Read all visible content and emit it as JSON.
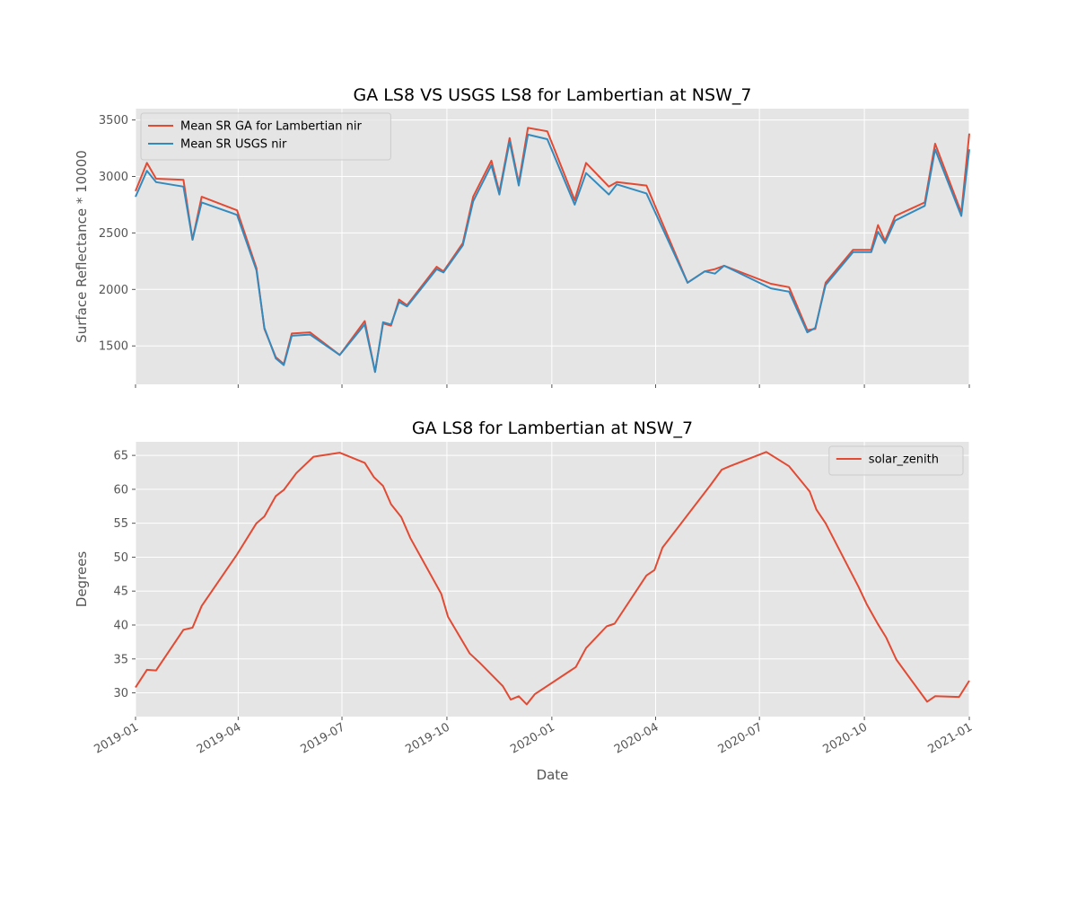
{
  "chart_data": [
    {
      "type": "line",
      "title": "GA LS8 VS USGS LS8 for Lambertian at NSW_7",
      "xlabel": "",
      "ylabel": "Surface Reflectance * 10000",
      "xlim": [
        "2019-01-01",
        "2021-01-01"
      ],
      "ylim": [
        1160,
        3600
      ],
      "yticks": [
        1500,
        2000,
        2500,
        3000,
        3500
      ],
      "xticks": [
        "2019-01",
        "2019-04",
        "2019-07",
        "2019-10",
        "2020-01",
        "2020-04",
        "2020-07",
        "2020-10",
        "2021-01"
      ],
      "show_xtick_labels": false,
      "grid": true,
      "legend": "upper-left",
      "series": [
        {
          "name": "Mean SR GA for Lambertian nir",
          "color": "#E24A33",
          "x": [
            "2019-01-01",
            "2019-01-11",
            "2019-01-19",
            "2019-02-12",
            "2019-02-20",
            "2019-02-28",
            "2019-03-31",
            "2019-04-17",
            "2019-04-24",
            "2019-05-04",
            "2019-05-11",
            "2019-05-18",
            "2019-06-03",
            "2019-06-29",
            "2019-07-21",
            "2019-07-30",
            "2019-08-06",
            "2019-08-13",
            "2019-08-20",
            "2019-08-27",
            "2019-09-22",
            "2019-09-28",
            "2019-10-15",
            "2019-10-24",
            "2019-11-09",
            "2019-11-16",
            "2019-11-25",
            "2019-12-03",
            "2019-12-11",
            "2019-12-28",
            "2020-01-21",
            "2020-01-31",
            "2020-02-20",
            "2020-02-27",
            "2020-03-24",
            "2020-04-29",
            "2020-05-14",
            "2020-05-23",
            "2020-05-31",
            "2020-07-11",
            "2020-07-27",
            "2020-08-12",
            "2020-08-19",
            "2020-08-28",
            "2020-09-21",
            "2020-10-07",
            "2020-10-13",
            "2020-10-19",
            "2020-10-28",
            "2020-11-23",
            "2020-12-02",
            "2020-12-25",
            "2021-01-01"
          ],
          "values": [
            2870,
            3120,
            2980,
            2970,
            2440,
            2820,
            2700,
            2190,
            1650,
            1400,
            1340,
            1610,
            1620,
            1420,
            1720,
            1270,
            1700,
            1680,
            1910,
            1860,
            2200,
            2160,
            2410,
            2820,
            3140,
            2860,
            3340,
            2940,
            3430,
            3400,
            2790,
            3120,
            2910,
            2950,
            2920,
            2060,
            2160,
            2180,
            2210,
            2050,
            2020,
            1640,
            1650,
            2060,
            2350,
            2350,
            2570,
            2430,
            2650,
            2770,
            3290,
            2680,
            3380
          ]
        },
        {
          "name": "Mean SR USGS nir",
          "color": "#348ABD",
          "x": [
            "2019-01-01",
            "2019-01-11",
            "2019-01-19",
            "2019-02-12",
            "2019-02-20",
            "2019-02-28",
            "2019-03-31",
            "2019-04-17",
            "2019-04-24",
            "2019-05-04",
            "2019-05-11",
            "2019-05-18",
            "2019-06-03",
            "2019-06-29",
            "2019-07-21",
            "2019-07-30",
            "2019-08-06",
            "2019-08-13",
            "2019-08-20",
            "2019-08-27",
            "2019-09-22",
            "2019-09-28",
            "2019-10-15",
            "2019-10-24",
            "2019-11-09",
            "2019-11-16",
            "2019-11-25",
            "2019-12-03",
            "2019-12-11",
            "2019-12-28",
            "2020-01-21",
            "2020-01-31",
            "2020-02-20",
            "2020-02-27",
            "2020-03-24",
            "2020-04-29",
            "2020-05-14",
            "2020-05-23",
            "2020-05-31",
            "2020-07-11",
            "2020-07-27",
            "2020-08-12",
            "2020-08-19",
            "2020-08-28",
            "2020-09-21",
            "2020-10-07",
            "2020-10-13",
            "2020-10-19",
            "2020-10-28",
            "2020-11-23",
            "2020-12-02",
            "2020-12-25",
            "2021-01-01"
          ],
          "values": [
            2820,
            3050,
            2950,
            2910,
            2440,
            2770,
            2660,
            2170,
            1660,
            1390,
            1330,
            1590,
            1600,
            1420,
            1690,
            1270,
            1710,
            1690,
            1890,
            1850,
            2180,
            2150,
            2390,
            2780,
            3100,
            2840,
            3310,
            2920,
            3370,
            3330,
            2750,
            3030,
            2840,
            2930,
            2850,
            2060,
            2160,
            2140,
            2210,
            2010,
            1980,
            1620,
            1660,
            2040,
            2330,
            2330,
            2510,
            2410,
            2610,
            2740,
            3240,
            2650,
            3240
          ]
        }
      ]
    },
    {
      "type": "line",
      "title": "GA LS8 for Lambertian at NSW_7",
      "xlabel": "Date",
      "ylabel": "Degrees",
      "xlim": [
        "2019-01-01",
        "2021-01-01"
      ],
      "ylim": [
        26.5,
        67
      ],
      "yticks": [
        30,
        35,
        40,
        45,
        50,
        55,
        60,
        65
      ],
      "xticks": [
        "2019-01",
        "2019-04",
        "2019-07",
        "2019-10",
        "2020-01",
        "2020-04",
        "2020-07",
        "2020-10",
        "2021-01"
      ],
      "show_xtick_labels": true,
      "grid": true,
      "legend": "upper-right",
      "series": [
        {
          "name": "solar_zenith",
          "color": "#E24A33",
          "x": [
            "2019-01-01",
            "2019-01-11",
            "2019-01-19",
            "2019-02-12",
            "2019-02-20",
            "2019-02-28",
            "2019-03-31",
            "2019-04-17",
            "2019-04-24",
            "2019-05-04",
            "2019-05-11",
            "2019-05-22",
            "2019-06-06",
            "2019-06-29",
            "2019-07-21",
            "2019-07-29",
            "2019-08-06",
            "2019-08-13",
            "2019-08-22",
            "2019-08-30",
            "2019-09-26",
            "2019-10-02",
            "2019-10-21",
            "2019-10-30",
            "2019-11-19",
            "2019-11-26",
            "2019-12-03",
            "2019-12-10",
            "2019-12-17",
            "2020-01-22",
            "2020-01-31",
            "2020-02-18",
            "2020-02-25",
            "2020-03-24",
            "2020-03-31",
            "2020-04-07",
            "2020-05-19",
            "2020-05-29",
            "2020-06-05",
            "2020-07-07",
            "2020-07-27",
            "2020-08-14",
            "2020-08-20",
            "2020-08-28",
            "2020-09-26",
            "2020-10-03",
            "2020-10-13",
            "2020-10-20",
            "2020-10-29",
            "2020-11-25",
            "2020-12-02",
            "2020-12-23",
            "2021-01-01"
          ],
          "values": [
            30.8,
            33.4,
            33.3,
            39.3,
            39.6,
            42.8,
            50.4,
            55.0,
            56.0,
            59.0,
            59.9,
            62.4,
            64.8,
            65.4,
            63.9,
            61.8,
            60.5,
            57.8,
            55.9,
            52.8,
            44.6,
            41.2,
            35.8,
            34.4,
            31.0,
            29.0,
            29.5,
            28.3,
            29.8,
            33.8,
            36.6,
            39.8,
            40.2,
            47.3,
            48.1,
            51.4,
            60.6,
            62.9,
            63.4,
            65.5,
            63.4,
            59.7,
            57.0,
            55.0,
            45.6,
            43.1,
            40.1,
            38.2,
            34.9,
            28.7,
            29.5,
            29.4,
            31.8
          ]
        }
      ]
    }
  ]
}
